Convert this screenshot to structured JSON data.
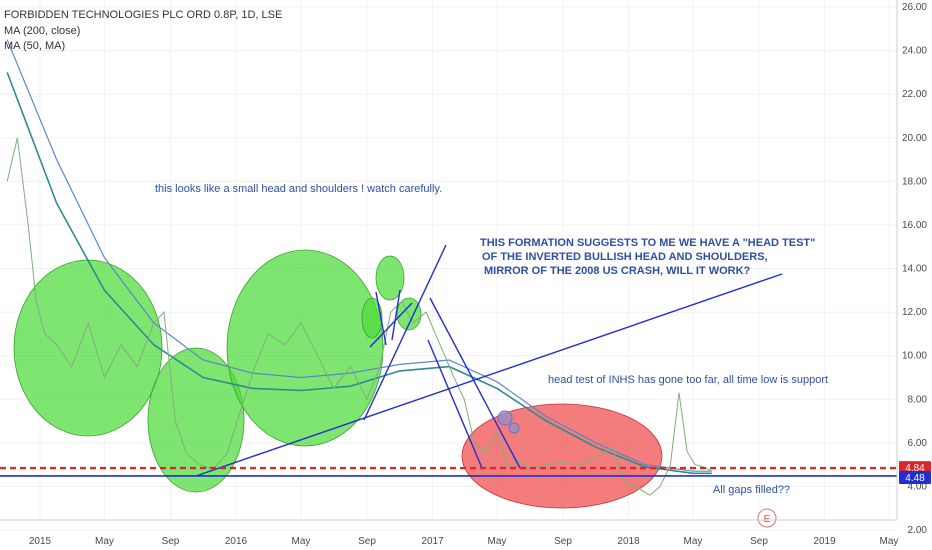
{
  "legend": {
    "symbol": "FORBIDDEN TECHNOLOGIES PLC ORD 0.8P, 1D, LSE",
    "ma200": "MA (200, close)",
    "ma50": "MA (50, MA)"
  },
  "colors": {
    "price": "#7fae7c",
    "price_down": "#d9605c",
    "ma200": "#5b86c9",
    "ma50": "#2f8a8f",
    "trendline": "#1f2fd1",
    "support_blue": "#1f2fd1",
    "support_red": "#d8282c",
    "green_zone": "#4cdb3a",
    "red_zone": "#ef4a4a",
    "annotation": "#2f4fa2"
  },
  "annotations": {
    "hs_note": "this looks like a small head and shoulders ! watch carefully.",
    "formation_line1": "THIS FORMATION SUGGESTS TO ME WE HAVE A \"HEAD TEST\"",
    "formation_line2": "OF THE INVERTED BULLISH HEAD AND SHOULDERS,",
    "formation_line3": "MIRROR OF THE 2008 US CRASH, WILL IT WORK?",
    "inhs_note": "head test of INHS has gone too far, all time low is support",
    "gaps_note": "All gaps filled??",
    "earnings_marker": "E"
  },
  "chart_data": {
    "type": "line",
    "ylim": [
      2.0,
      26.0
    ],
    "y_ticks": [
      "26.00",
      "24.00",
      "22.00",
      "20.00",
      "18.00",
      "16.00",
      "14.00",
      "12.00",
      "10.00",
      "8.00",
      "6.00",
      "4.00",
      "2.00"
    ],
    "x_ticks": [
      "2015",
      "May",
      "Sep",
      "2016",
      "May",
      "Sep",
      "2017",
      "May",
      "Sep",
      "2018",
      "May",
      "Sep",
      "2019",
      "May"
    ],
    "price_labels": {
      "red_level": "4.84",
      "blue_level": "4.48"
    },
    "levels": {
      "red_dashed": 4.84,
      "blue_support": 4.48
    },
    "series": [
      {
        "name": "FORBIDDEN TECHNOLOGIES PLC ORD 0.8P",
        "x": [
          "2014-11-01",
          "2014-11-20",
          "2014-12-10",
          "2014-12-25",
          "2015-01-10",
          "2015-02-01",
          "2015-03-01",
          "2015-04-01",
          "2015-05-01",
          "2015-06-01",
          "2015-07-01",
          "2015-08-01",
          "2015-08-20",
          "2015-09-10",
          "2015-10-01",
          "2015-10-25",
          "2015-11-20",
          "2015-12-15",
          "2016-01-10",
          "2016-02-05",
          "2016-03-01",
          "2016-04-01",
          "2016-05-01",
          "2016-06-01",
          "2016-07-01",
          "2016-08-01",
          "2016-09-01",
          "2016-09-25",
          "2016-10-15",
          "2016-11-05",
          "2016-11-25",
          "2016-12-20",
          "2017-01-15",
          "2017-02-10",
          "2017-03-01",
          "2017-03-20",
          "2017-04-10",
          "2017-05-01",
          "2017-05-20",
          "2017-06-10",
          "2017-07-01",
          "2017-08-01",
          "2017-09-01",
          "2017-10-01",
          "2017-11-01",
          "2017-12-01",
          "2017-12-25",
          "2018-01-20",
          "2018-02-10",
          "2018-03-01",
          "2018-03-20",
          "2018-04-05",
          "2018-04-20",
          "2018-05-05",
          "2018-05-20",
          "2018-06-05"
        ],
        "y": [
          18.0,
          20.0,
          16.0,
          12.5,
          11.0,
          10.5,
          9.5,
          11.5,
          9.0,
          10.5,
          9.5,
          11.5,
          12.0,
          7.0,
          5.5,
          5.0,
          4.8,
          5.5,
          7.5,
          9.5,
          11.0,
          10.5,
          11.5,
          10.0,
          8.5,
          9.5,
          8.0,
          9.5,
          12.0,
          12.5,
          11.5,
          12.0,
          10.5,
          9.0,
          8.0,
          6.0,
          5.5,
          6.5,
          4.9,
          5.2,
          4.8,
          5.0,
          5.1,
          5.0,
          5.3,
          5.8,
          4.2,
          3.9,
          3.6,
          4.0,
          5.0,
          8.3,
          5.6,
          5.0,
          4.9,
          4.7
        ]
      },
      {
        "name": "MA (200, close)",
        "x": [
          "2014-11-01",
          "2015-02-01",
          "2015-05-01",
          "2015-08-01",
          "2015-11-01",
          "2016-02-01",
          "2016-05-01",
          "2016-08-01",
          "2016-11-01",
          "2017-02-01",
          "2017-05-01",
          "2017-08-01",
          "2017-11-01",
          "2018-02-01",
          "2018-05-01",
          "2018-06-05"
        ],
        "y": [
          24.5,
          19.0,
          14.5,
          11.5,
          9.8,
          9.2,
          9.0,
          9.2,
          9.6,
          9.8,
          8.8,
          7.2,
          6.0,
          5.0,
          4.7,
          4.7
        ]
      },
      {
        "name": "MA (50, MA)",
        "x": [
          "2014-11-01",
          "2015-02-01",
          "2015-05-01",
          "2015-08-01",
          "2015-11-01",
          "2016-02-01",
          "2016-05-01",
          "2016-08-01",
          "2016-11-01",
          "2017-02-01",
          "2017-05-01",
          "2017-08-01",
          "2017-11-01",
          "2018-02-01",
          "2018-05-01",
          "2018-06-05"
        ],
        "y": [
          23.0,
          17.0,
          13.0,
          10.5,
          9.0,
          8.5,
          8.4,
          8.6,
          9.3,
          9.5,
          8.5,
          7.0,
          5.8,
          4.9,
          4.6,
          4.6
        ]
      }
    ]
  }
}
